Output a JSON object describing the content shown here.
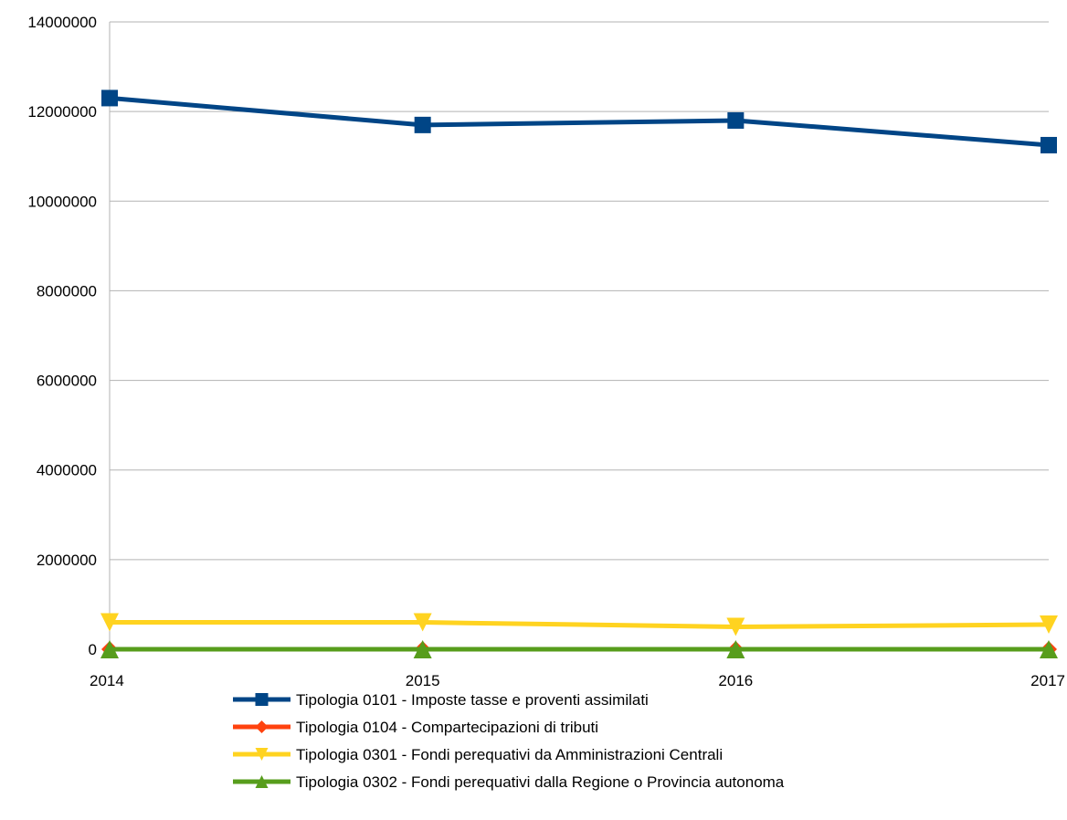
{
  "chart_data": {
    "type": "line",
    "x": [
      "2014",
      "2015",
      "2016",
      "2017"
    ],
    "ylim": [
      0,
      14000000
    ],
    "yticks": [
      "0",
      "2000000",
      "4000000",
      "6000000",
      "8000000",
      "10000000",
      "12000000",
      "14000000"
    ],
    "grid": "horizontal",
    "legend_position": "bottom",
    "series": [
      {
        "name": "Tipologia 0101 - Imposte tasse e proventi assimilati",
        "values": [
          12300000,
          11700000,
          11800000,
          11250000
        ],
        "color": "#004586",
        "marker": "square"
      },
      {
        "name": "Tipologia 0104 - Compartecipazioni di tributi",
        "values": [
          0,
          0,
          0,
          0
        ],
        "color": "#ff420e",
        "marker": "diamond"
      },
      {
        "name": "Tipologia 0301 - Fondi perequativi da Amministrazioni Centrali",
        "values": [
          600000,
          600000,
          500000,
          550000
        ],
        "color": "#ffd320",
        "marker": "triangle-down"
      },
      {
        "name": "Tipologia 0302 - Fondi perequativi dalla Regione o Provincia autonoma",
        "values": [
          0,
          0,
          0,
          0
        ],
        "color": "#579d1c",
        "marker": "triangle-up"
      }
    ]
  }
}
